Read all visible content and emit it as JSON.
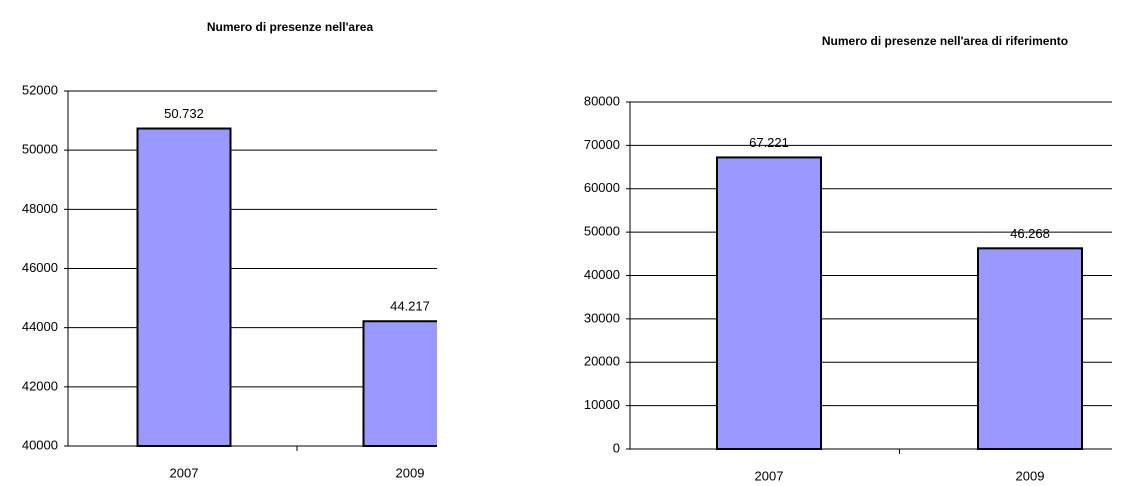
{
  "chart_data": [
    {
      "type": "bar",
      "title": "Numero di presenze nell'area",
      "categories": [
        "2007",
        "2009"
      ],
      "values": [
        50732,
        44217
      ],
      "value_labels": [
        "50.732",
        "44.217"
      ],
      "color": "#9999ff",
      "ylim": [
        40000,
        52000
      ],
      "yticks": [
        40000,
        42000,
        44000,
        46000,
        48000,
        50000,
        52000
      ],
      "grid": true
    },
    {
      "type": "bar",
      "title": "Numero di presenze nell'area di riferimento",
      "categories": [
        "2007",
        "2009"
      ],
      "values": [
        67221,
        46268
      ],
      "value_labels": [
        "67.221",
        "46.268"
      ],
      "color": "#9999ff",
      "ylim": [
        0,
        80000
      ],
      "yticks": [
        0,
        10000,
        20000,
        30000,
        40000,
        50000,
        60000,
        70000,
        80000
      ],
      "grid": true
    }
  ]
}
